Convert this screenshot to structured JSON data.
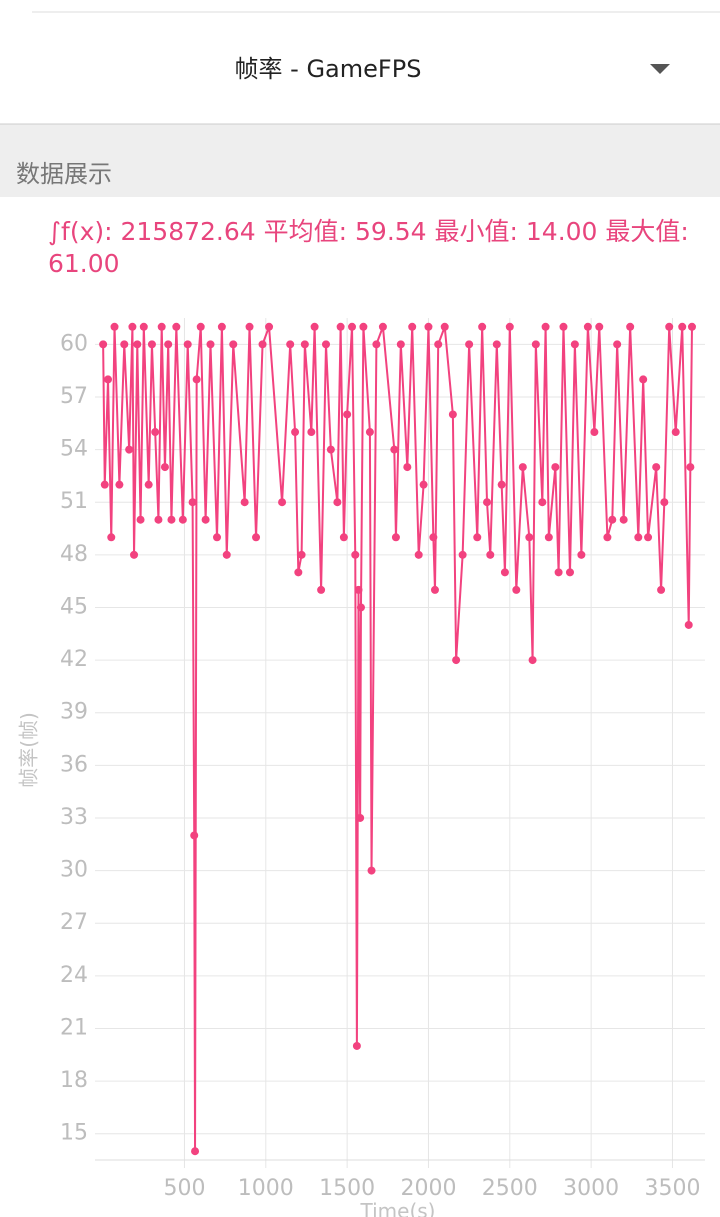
{
  "header": {
    "selector": "帧率 - GameFPS",
    "section": "数据展示",
    "stats": "∫f(x): 215872.64 平均值: 59.54 最小值: 14.00 最大值: 61.00"
  },
  "chart_data": {
    "type": "line",
    "ylabel": "帧率(帧)",
    "xlabel": "Time(s)",
    "grid": true,
    "xlim": [
      -50,
      3700
    ],
    "xticks": [
      500,
      1000,
      1500,
      2000,
      2500,
      3000,
      3500
    ],
    "ylim": [
      13.5,
      61.5
    ],
    "yticks": [
      15,
      18,
      21,
      24,
      27,
      30,
      33,
      36,
      39,
      42,
      45,
      48,
      51,
      54,
      57,
      60
    ],
    "series": [
      {
        "name": "GameFPS",
        "color": "#f2427f",
        "x": [
          0,
          10,
          30,
          50,
          70,
          100,
          130,
          160,
          180,
          190,
          210,
          230,
          250,
          280,
          300,
          320,
          340,
          360,
          380,
          400,
          420,
          450,
          490,
          520,
          550,
          560,
          565,
          575,
          600,
          630,
          660,
          700,
          730,
          760,
          800,
          870,
          900,
          940,
          980,
          1020,
          1100,
          1150,
          1180,
          1200,
          1220,
          1240,
          1280,
          1300,
          1340,
          1370,
          1400,
          1440,
          1460,
          1480,
          1500,
          1530,
          1550,
          1560,
          1570,
          1580,
          1585,
          1600,
          1640,
          1650,
          1680,
          1720,
          1790,
          1800,
          1830,
          1870,
          1900,
          1940,
          1970,
          2000,
          2030,
          2040,
          2060,
          2100,
          2150,
          2170,
          2210,
          2250,
          2300,
          2330,
          2360,
          2380,
          2420,
          2450,
          2470,
          2500,
          2540,
          2580,
          2620,
          2640,
          2660,
          2700,
          2720,
          2740,
          2780,
          2800,
          2830,
          2870,
          2900,
          2940,
          2980,
          3020,
          3050,
          3100,
          3130,
          3160,
          3200,
          3240,
          3290,
          3320,
          3350,
          3400,
          3430,
          3450,
          3480,
          3520,
          3560,
          3600,
          3610,
          3620
        ],
        "values": [
          60,
          52,
          58,
          49,
          61,
          52,
          60,
          54,
          61,
          48,
          60,
          50,
          61,
          52,
          60,
          55,
          50,
          61,
          53,
          60,
          50,
          61,
          50,
          60,
          51,
          32,
          14,
          58,
          61,
          50,
          60,
          49,
          61,
          48,
          60,
          51,
          61,
          49,
          60,
          61,
          51,
          60,
          55,
          47,
          48,
          60,
          55,
          61,
          46,
          60,
          54,
          51,
          61,
          49,
          56,
          61,
          48,
          20,
          46,
          33,
          45,
          61,
          55,
          30,
          60,
          61,
          54,
          49,
          60,
          53,
          61,
          48,
          52,
          61,
          49,
          46,
          60,
          61,
          56,
          42,
          48,
          60,
          49,
          61,
          51,
          48,
          60,
          52,
          47,
          61,
          46,
          53,
          49,
          42,
          60,
          51,
          61,
          49,
          53,
          47,
          61,
          47,
          60,
          48,
          61,
          55,
          61,
          49,
          50,
          60,
          50,
          61,
          49,
          58,
          49,
          53,
          46,
          51,
          61,
          55,
          61,
          44,
          53,
          61
        ]
      }
    ]
  }
}
